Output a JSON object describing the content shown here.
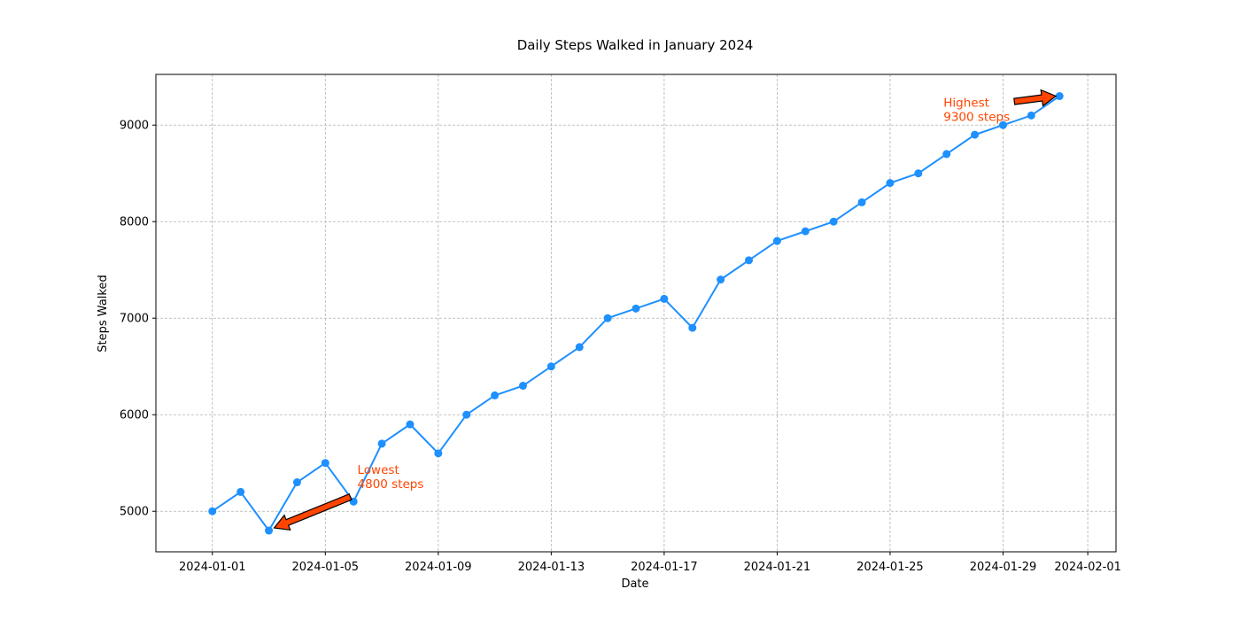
{
  "chart_data": {
    "type": "line",
    "title": "Daily Steps Walked in January 2024",
    "xlabel": "Date",
    "ylabel": "Steps Walked",
    "x_ticks": [
      "2024-01-01",
      "2024-01-05",
      "2024-01-09",
      "2024-01-13",
      "2024-01-17",
      "2024-01-21",
      "2024-01-25",
      "2024-01-29",
      "2024-02-01"
    ],
    "y_ticks": [
      "5000",
      "6000",
      "7000",
      "8000",
      "9000"
    ],
    "xlim": [
      "2023-12-30",
      "2024-02-02"
    ],
    "ylim": [
      4580,
      9525
    ],
    "grid": true,
    "series": [
      {
        "color": "#1e90ff",
        "marker": "circle",
        "x": [
          "2024-01-01",
          "2024-01-02",
          "2024-01-03",
          "2024-01-04",
          "2024-01-05",
          "2024-01-06",
          "2024-01-07",
          "2024-01-08",
          "2024-01-09",
          "2024-01-10",
          "2024-01-11",
          "2024-01-12",
          "2024-01-13",
          "2024-01-14",
          "2024-01-15",
          "2024-01-16",
          "2024-01-17",
          "2024-01-18",
          "2024-01-19",
          "2024-01-20",
          "2024-01-21",
          "2024-01-22",
          "2024-01-23",
          "2024-01-24",
          "2024-01-25",
          "2024-01-26",
          "2024-01-27",
          "2024-01-28",
          "2024-01-29",
          "2024-01-30",
          "2024-01-31"
        ],
        "y": [
          5000,
          5200,
          4800,
          5300,
          5500,
          5100,
          5700,
          5900,
          5600,
          6000,
          6200,
          6300,
          6500,
          6700,
          7000,
          7100,
          7200,
          6900,
          7400,
          7600,
          7800,
          7900,
          8000,
          8200,
          8400,
          8500,
          8700,
          8900,
          9000,
          9100,
          9300
        ]
      }
    ],
    "annotations": [
      {
        "line1": "Lowest",
        "line2": "4800 steps",
        "target_x": "2024-01-03",
        "target_y": 4800,
        "color": "#ff4500"
      },
      {
        "line1": "Highest",
        "line2": "9300 steps",
        "target_x": "2024-01-31",
        "target_y": 9300,
        "color": "#ff4500"
      }
    ]
  }
}
